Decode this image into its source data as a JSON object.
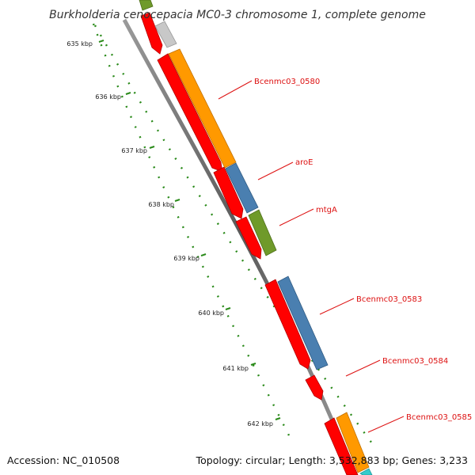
{
  "title": "Burkholderia cenocepacia MC0-3 chromosome 1, complete genome",
  "footer": {
    "accession": "Accession: NC_010508",
    "summary": "Topology: circular; Length: 3,532,883 bp; Genes: 3,233"
  },
  "ticks": [
    "635 kbp",
    "636 kbp",
    "637 kbp",
    "638 kbp",
    "639 kbp",
    "640 kbp",
    "641 kbp",
    "642 kbp"
  ],
  "gene_labels": [
    "Bcenmc03_0580",
    "aroE",
    "mtgA",
    "Bcenmc03_0583",
    "Bcenmc03_0584",
    "Bcenmc03_0585"
  ],
  "colors": {
    "backbone": "#7a7a7a",
    "tick": "#2a8a1a",
    "reverse_cds": "#ff0000",
    "forward_orange": "#ff9900",
    "forward_blue": "#4a7fb0",
    "forward_green": "#6f9a2a",
    "forward_gray": "#c8c8c8",
    "forward_cyan": "#33cccc",
    "label": "#dd1111"
  }
}
